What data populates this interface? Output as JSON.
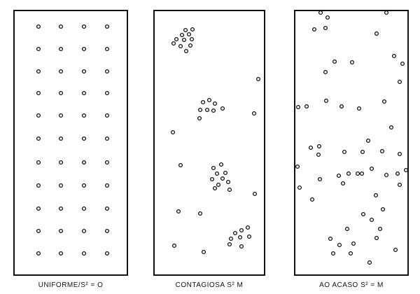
{
  "panels": [
    {
      "label": "UNIFORME/S² = O"
    },
    {
      "label": "CONTAGIOSA S² M"
    },
    {
      "label": "AO ACASO S² = M"
    }
  ]
}
